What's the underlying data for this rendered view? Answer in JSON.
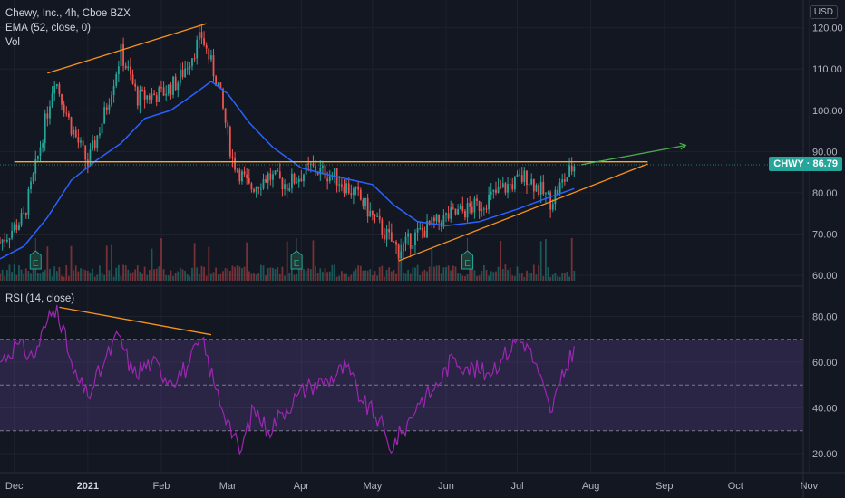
{
  "legend": {
    "symbol": "Chewy, Inc., 4h, Cboe BZX",
    "ema": "EMA (52, close, 0)",
    "vol": "Vol",
    "rsi": "RSI (14, close)"
  },
  "currency": "USD",
  "last_price": {
    "symbol": "CHWY",
    "value": "86.79",
    "label": "CHWY · 86.79"
  },
  "colors": {
    "background": "#131722",
    "up": "#26a69a",
    "down": "#ef5350",
    "ema": "#2962ff",
    "trendline": "#f7931a",
    "resistance": "#ffa726",
    "projection": "#4caf50",
    "rsi_line": "#9c27b0",
    "rsi_band": "#7e57c2"
  },
  "earnings_marker": "E",
  "chart_data": [
    {
      "type": "candlestick",
      "title": "Chewy, Inc., 4h, Cboe BZX",
      "x_ticks": [
        "Dec",
        "2021",
        "Feb",
        "Mar",
        "Apr",
        "May",
        "Jun",
        "Jul",
        "Aug",
        "Sep",
        "Oct",
        "Nov"
      ],
      "y_ticks": [
        "60.00",
        "70.00",
        "80.00",
        "90.00",
        "100.00",
        "110.00",
        "120.00"
      ],
      "ylim": [
        58,
        124
      ],
      "series": [
        {
          "name": "EMA (52, close, 0)",
          "points": [
            [
              "2020-11-25",
              64
            ],
            [
              "2020-12-05",
              67
            ],
            [
              "2020-12-15",
              74
            ],
            [
              "2020-12-25",
              83
            ],
            [
              "2021-01-05",
              88
            ],
            [
              "2021-01-15",
              92
            ],
            [
              "2021-01-25",
              98
            ],
            [
              "2021-02-05",
              100
            ],
            [
              "2021-02-15",
              104
            ],
            [
              "2021-02-22",
              107
            ],
            [
              "2021-03-01",
              104
            ],
            [
              "2021-03-10",
              97
            ],
            [
              "2021-03-20",
              91
            ],
            [
              "2021-04-01",
              86
            ],
            [
              "2021-04-15",
              84
            ],
            [
              "2021-05-01",
              82
            ],
            [
              "2021-05-10",
              77
            ],
            [
              "2021-05-20",
              73
            ],
            [
              "2021-06-01",
              72
            ],
            [
              "2021-06-15",
              73
            ],
            [
              "2021-07-01",
              76
            ],
            [
              "2021-07-15",
              79
            ],
            [
              "2021-07-25",
              81
            ]
          ]
        },
        {
          "name": "close",
          "points": [
            [
              "2020-11-25",
              68
            ],
            [
              "2020-12-05",
              74
            ],
            [
              "2020-12-10",
              86
            ],
            [
              "2020-12-18",
              108
            ],
            [
              "2020-12-25",
              96
            ],
            [
              "2021-01-01",
              87
            ],
            [
              "2021-01-08",
              99
            ],
            [
              "2021-01-15",
              114
            ],
            [
              "2021-01-22",
              103
            ],
            [
              "2021-02-01",
              104
            ],
            [
              "2021-02-08",
              107
            ],
            [
              "2021-02-18",
              118
            ],
            [
              "2021-02-25",
              106
            ],
            [
              "2021-03-03",
              88
            ],
            [
              "2021-03-10",
              81
            ],
            [
              "2021-03-18",
              84
            ],
            [
              "2021-03-26",
              82
            ],
            [
              "2021-04-05",
              86
            ],
            [
              "2021-04-15",
              84
            ],
            [
              "2021-04-25",
              79
            ],
            [
              "2021-05-05",
              71
            ],
            [
              "2021-05-12",
              66
            ],
            [
              "2021-05-20",
              70
            ],
            [
              "2021-06-01",
              74
            ],
            [
              "2021-06-15",
              77
            ],
            [
              "2021-06-25",
              81
            ],
            [
              "2021-07-05",
              84
            ],
            [
              "2021-07-15",
              78
            ],
            [
              "2021-07-25",
              86.79
            ]
          ]
        }
      ],
      "annotations": [
        {
          "type": "trendline",
          "from": [
            "2020-12-15",
            109
          ],
          "to": [
            "2021-02-20",
            121
          ]
        },
        {
          "type": "horizontal",
          "value": 87.5,
          "from": "2020-12-01",
          "to": "2021-08-25"
        },
        {
          "type": "trendline",
          "from": [
            "2021-05-12",
            63.5
          ],
          "to": [
            "2021-08-25",
            87
          ]
        },
        {
          "type": "arrow",
          "from": [
            "2021-07-28",
            86.8
          ],
          "to": [
            "2021-09-10",
            91.5
          ]
        }
      ],
      "earnings": [
        "2020-12-10",
        "2021-03-30",
        "2021-06-10"
      ]
    },
    {
      "type": "line",
      "title": "RSI (14, close)",
      "y_ticks": [
        "20.00",
        "40.00",
        "60.00",
        "80.00"
      ],
      "ylim": [
        12,
        88
      ],
      "band": [
        30,
        70
      ],
      "midline": 50,
      "series": [
        {
          "name": "RSI (14, close)",
          "points": [
            [
              "2020-11-25",
              60
            ],
            [
              "2020-12-02",
              68
            ],
            [
              "2020-12-09",
              62
            ],
            [
              "2020-12-15",
              78
            ],
            [
              "2020-12-19",
              85
            ],
            [
              "2020-12-26",
              55
            ],
            [
              "2021-01-01",
              45
            ],
            [
              "2021-01-08",
              60
            ],
            [
              "2021-01-14",
              72
            ],
            [
              "2021-01-20",
              55
            ],
            [
              "2021-01-28",
              60
            ],
            [
              "2021-02-05",
              52
            ],
            [
              "2021-02-12",
              58
            ],
            [
              "2021-02-18",
              70
            ],
            [
              "2021-02-24",
              48
            ],
            [
              "2021-03-01",
              35
            ],
            [
              "2021-03-06",
              20
            ],
            [
              "2021-03-12",
              40
            ],
            [
              "2021-03-18",
              30
            ],
            [
              "2021-03-24",
              38
            ],
            [
              "2021-03-30",
              45
            ],
            [
              "2021-04-05",
              50
            ],
            [
              "2021-04-12",
              52
            ],
            [
              "2021-04-20",
              58
            ],
            [
              "2021-04-27",
              42
            ],
            [
              "2021-05-04",
              35
            ],
            [
              "2021-05-08",
              22
            ],
            [
              "2021-05-14",
              30
            ],
            [
              "2021-05-20",
              42
            ],
            [
              "2021-05-27",
              48
            ],
            [
              "2021-06-04",
              62
            ],
            [
              "2021-06-10",
              58
            ],
            [
              "2021-06-18",
              55
            ],
            [
              "2021-06-25",
              62
            ],
            [
              "2021-07-01",
              70
            ],
            [
              "2021-07-05",
              68
            ],
            [
              "2021-07-10",
              55
            ],
            [
              "2021-07-15",
              38
            ],
            [
              "2021-07-19",
              50
            ],
            [
              "2021-07-25",
              67
            ]
          ]
        }
      ],
      "annotations": [
        {
          "type": "trendline",
          "from": [
            "2020-12-20",
            84
          ],
          "to": [
            "2021-02-22",
            72
          ]
        }
      ]
    }
  ]
}
